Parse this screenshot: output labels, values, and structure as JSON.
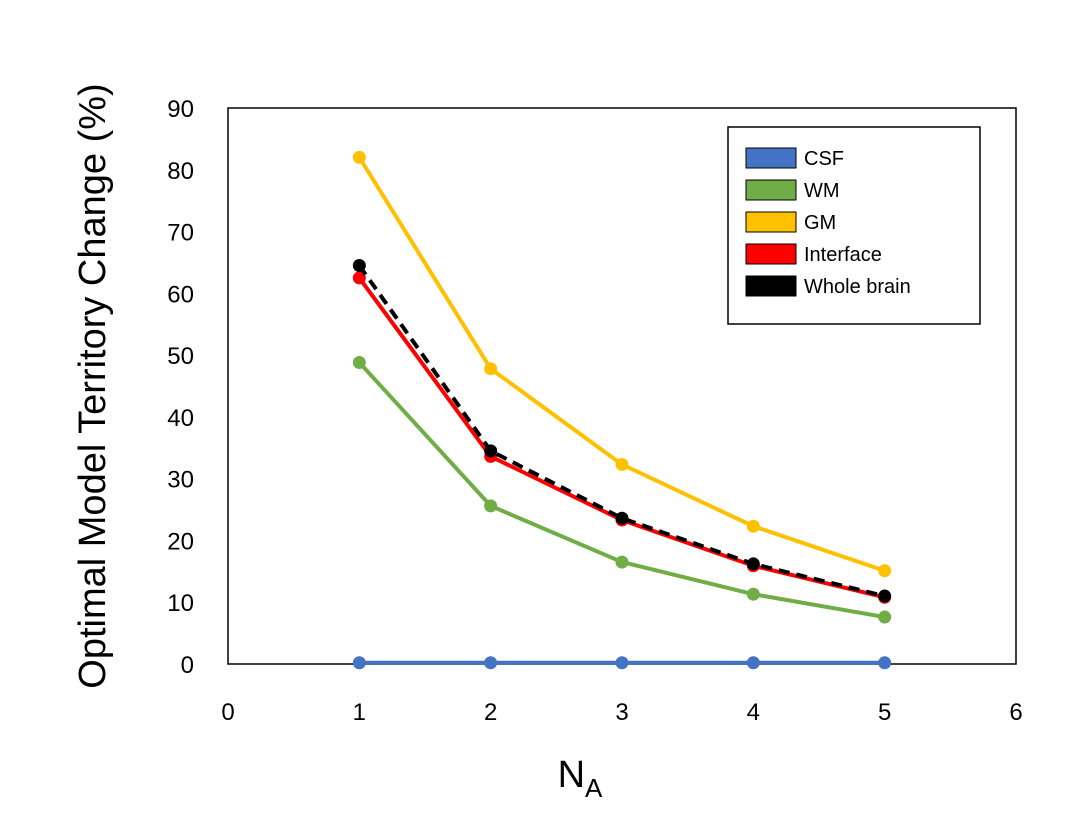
{
  "chart_data": {
    "type": "line",
    "xlabel": "N",
    "xlabel_subscript": "A",
    "ylabel": "Optimal Model Territory Change (%)",
    "xlim": [
      0,
      6
    ],
    "ylim": [
      0,
      90
    ],
    "x_ticks": [
      "0",
      "1",
      "2",
      "3",
      "4",
      "5",
      "6"
    ],
    "y_ticks": [
      "0",
      "10",
      "20",
      "30",
      "40",
      "50",
      "60",
      "70",
      "80",
      "90"
    ],
    "grid": false,
    "legend_position": "top-right",
    "x": [
      1,
      2,
      3,
      4,
      5
    ],
    "series": [
      {
        "name": "CSF",
        "color": "#4472C4",
        "dashed": false,
        "values": [
          0.2,
          0.2,
          0.2,
          0.2,
          0.2
        ]
      },
      {
        "name": "WM",
        "color": "#70AD47",
        "dashed": false,
        "values": [
          48.8,
          25.6,
          16.5,
          11.3,
          7.6
        ]
      },
      {
        "name": "GM",
        "color": "#FFC000",
        "dashed": false,
        "values": [
          82.0,
          47.8,
          32.3,
          22.3,
          15.1
        ]
      },
      {
        "name": "Interface",
        "color": "#FF0000",
        "dashed": false,
        "values": [
          62.5,
          33.6,
          23.3,
          15.9,
          10.8
        ]
      },
      {
        "name": "Whole brain",
        "color": "#000000",
        "dashed": true,
        "values": [
          64.5,
          34.5,
          23.6,
          16.2,
          11.0
        ]
      }
    ]
  }
}
